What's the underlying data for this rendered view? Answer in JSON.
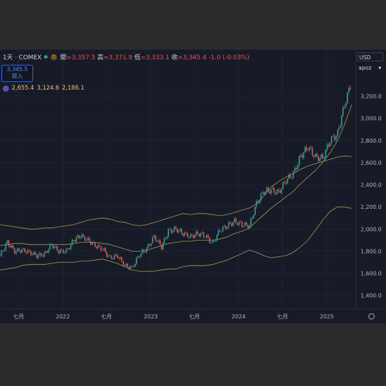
{
  "legend": {
    "symbol": "1天 · COMEX",
    "badge": "D",
    "open_label": "開",
    "open_value": "=3,357.5",
    "high_label": "高",
    "high_value": "=3,371.9",
    "low_label": "低",
    "low_value": "=3,333.1",
    "close_label": "收",
    "close_value": "=3,345.4",
    "change": "-1.0 (-0.03%)"
  },
  "quote": {
    "price": "3,345.5",
    "action": "買入"
  },
  "indicator": {
    "values": [
      "2,655.4",
      "3,124.6",
      "2,186.1"
    ]
  },
  "axis_controls": {
    "currency": "USD",
    "scale": "apoz"
  },
  "icons": {
    "badge": "d-badge-icon",
    "indicator": "indicator-icon",
    "settings": "gear-icon"
  },
  "colors": {
    "up": "#26a69a",
    "down": "#ef5350",
    "band": "#c9b458",
    "accent": "#2962ff"
  },
  "chart_data": {
    "type": "line",
    "title": "",
    "xlabel": "",
    "ylabel": "",
    "x_range": [
      "2021-04-15",
      "2025-05-01"
    ],
    "ylim": [
      1280,
      3620
    ],
    "grid": true,
    "x": [
      "2021-04",
      "2021-05",
      "2021-06",
      "2021-07",
      "2021-08",
      "2021-09",
      "2021-10",
      "2021-11",
      "2021-12",
      "2022-01",
      "2022-02",
      "2022-03",
      "2022-04",
      "2022-05",
      "2022-06",
      "2022-07",
      "2022-08",
      "2022-09",
      "2022-10",
      "2022-11",
      "2022-12",
      "2023-01",
      "2023-02",
      "2023-03",
      "2023-04",
      "2023-05",
      "2023-06",
      "2023-07",
      "2023-08",
      "2023-09",
      "2023-10",
      "2023-11",
      "2023-12",
      "2024-01",
      "2024-02",
      "2024-03",
      "2024-04",
      "2024-05",
      "2024-06",
      "2024-07",
      "2024-08",
      "2024-09",
      "2024-10",
      "2024-11",
      "2024-12",
      "2025-01",
      "2025-02",
      "2025-03",
      "2025-04"
    ],
    "series": [
      {
        "values": [
          1760,
          1880,
          1800,
          1810,
          1790,
          1760,
          1770,
          1860,
          1800,
          1800,
          1900,
          1940,
          1900,
          1850,
          1820,
          1740,
          1760,
          1670,
          1650,
          1770,
          1820,
          1930,
          1840,
          1980,
          2000,
          1960,
          1930,
          1960,
          1940,
          1870,
          1990,
          2030,
          2070,
          2040,
          2030,
          2230,
          2340,
          2350,
          2330,
          2440,
          2500,
          2660,
          2740,
          2650,
          2640,
          2800,
          2860,
          3120,
          3340
        ]
      },
      {
        "values": [
          2040,
          2030,
          2020,
          2010,
          2000,
          2000,
          2010,
          2010,
          2020,
          2030,
          2040,
          2060,
          2080,
          2090,
          2100,
          2090,
          2070,
          2060,
          2040,
          2030,
          2040,
          2060,
          2080,
          2100,
          2120,
          2140,
          2130,
          2140,
          2140,
          2130,
          2120,
          2130,
          2150,
          2170,
          2190,
          2230,
          2300,
          2380,
          2430,
          2470,
          2500,
          2540,
          2570,
          2590,
          2610,
          2630,
          2650,
          2660,
          2655
        ]
      },
      {
        "values": [
          1850,
          1860,
          1870,
          1870,
          1860,
          1860,
          1860,
          1860,
          1860,
          1860,
          1870,
          1880,
          1880,
          1880,
          1870,
          1860,
          1840,
          1820,
          1800,
          1800,
          1810,
          1830,
          1850,
          1870,
          1880,
          1890,
          1890,
          1900,
          1900,
          1900,
          1910,
          1930,
          1960,
          1980,
          2010,
          2070,
          2130,
          2190,
          2240,
          2290,
          2340,
          2410,
          2470,
          2530,
          2600,
          2690,
          2800,
          2940,
          3124
        ]
      },
      {
        "values": [
          1630,
          1640,
          1650,
          1670,
          1680,
          1680,
          1680,
          1690,
          1700,
          1700,
          1700,
          1710,
          1710,
          1720,
          1730,
          1710,
          1690,
          1660,
          1630,
          1620,
          1620,
          1620,
          1630,
          1640,
          1640,
          1660,
          1670,
          1670,
          1670,
          1680,
          1700,
          1720,
          1750,
          1780,
          1810,
          1790,
          1760,
          1740,
          1750,
          1760,
          1790,
          1840,
          1900,
          1990,
          2080,
          2160,
          2200,
          2200,
          2186
        ]
      }
    ]
  },
  "axes": {
    "y_ticks": [
      {
        "value": 1400,
        "label": "1,400.0"
      },
      {
        "value": 1600,
        "label": "1,600.0"
      },
      {
        "value": 1800,
        "label": "1,800.0"
      },
      {
        "value": 2000,
        "label": "2,000.0"
      },
      {
        "value": 2200,
        "label": "2,200.0"
      },
      {
        "value": 2400,
        "label": "2,400.0"
      },
      {
        "value": 2600,
        "label": "2,600.0"
      },
      {
        "value": 2800,
        "label": "2,800.0"
      },
      {
        "value": 3000,
        "label": "3,000.0"
      },
      {
        "value": 3200,
        "label": "3,200.0"
      }
    ],
    "x_ticks": [
      {
        "date": "2021-07-01",
        "label": "七月"
      },
      {
        "date": "2022-01-01",
        "label": "2022"
      },
      {
        "date": "2022-07-01",
        "label": "七月"
      },
      {
        "date": "2023-01-01",
        "label": "2023"
      },
      {
        "date": "2023-07-01",
        "label": "七月"
      },
      {
        "date": "2024-01-01",
        "label": "2024"
      },
      {
        "date": "2024-07-01",
        "label": "七月"
      },
      {
        "date": "2025-01-01",
        "label": "2025"
      }
    ]
  }
}
